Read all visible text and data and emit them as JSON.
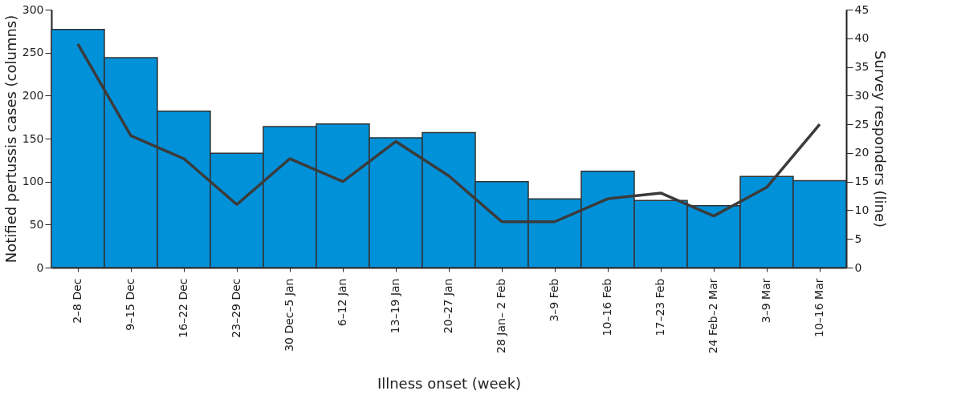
{
  "chart_data": {
    "type": "bar",
    "xlabel": "Illness onset (week)",
    "ylabel": "Notified pertussis cases (columns)",
    "y2label": "Survey responders (line)",
    "categories": [
      "2–8 Dec",
      "9–15 Dec",
      "16–22 Dec",
      "23–29 Dec",
      "30 Dec–5 Jan",
      "6–12 Jan",
      "13–19 Jan",
      "20–27 Jan",
      "28 Jan– 2 Feb",
      "3–9 Feb",
      "10–16 Feb",
      "17–23 Feb",
      "24 Feb–2 Mar",
      "3–9 Mar",
      "10–16 Mar"
    ],
    "series": [
      {
        "color": "#0091d9",
        "values": [
          277,
          244,
          182,
          133,
          164,
          167,
          151,
          157,
          100,
          80,
          112,
          78,
          72,
          106,
          101
        ]
      },
      {
        "type": "line",
        "axis": "y2",
        "color": "#3b3b3b",
        "values": [
          39,
          23,
          19,
          11,
          19,
          15,
          22,
          16,
          8,
          8,
          12,
          13,
          9,
          14,
          25
        ]
      }
    ],
    "ylim": [
      0,
      300
    ],
    "yticks": [
      0,
      50,
      100,
      150,
      200,
      250,
      300
    ],
    "y2lim": [
      0,
      45
    ],
    "y2ticks": [
      0,
      5,
      10,
      15,
      20,
      25,
      30,
      35,
      40,
      45
    ],
    "grid": false,
    "marker": "none",
    "line_style": "solid"
  }
}
